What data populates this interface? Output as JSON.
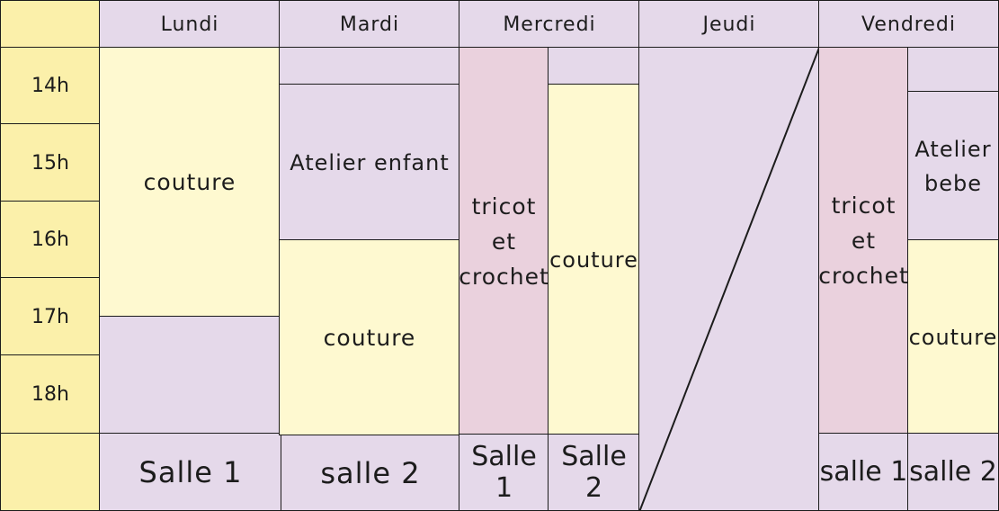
{
  "days": {
    "lundi": "Lundi",
    "mardi": "Mardi",
    "mercredi": "Mercredi",
    "jeudi": "Jeudi",
    "vendredi": "Vendredi"
  },
  "hours": [
    "14h",
    "15h",
    "16h",
    "17h",
    "18h"
  ],
  "activities": {
    "lundi_couture": "couture",
    "mardi_atelier_enfant": "Atelier enfant",
    "mardi_couture": "couture",
    "mercredi_tricot": "tricot\net\ncrochet",
    "mercredi_couture": "couture",
    "vendredi_tricot": "tricot\net\ncrochet",
    "vendredi_atelier_bebe": "Atelier\nbebe",
    "vendredi_couture": "couture"
  },
  "rooms": {
    "lundi": "Salle 1",
    "mardi": "salle 2",
    "mercredi_1": "Salle 1",
    "mercredi_2": "Salle 2",
    "vendredi_1": "salle 1",
    "vendredi_2": "salle 2"
  },
  "colors": {
    "lavender": "#e5d9ea",
    "yellow": "#fef9d0",
    "gold": "#fbf0aa",
    "pink": "#ead1dd",
    "border": "#1c1c1c"
  }
}
